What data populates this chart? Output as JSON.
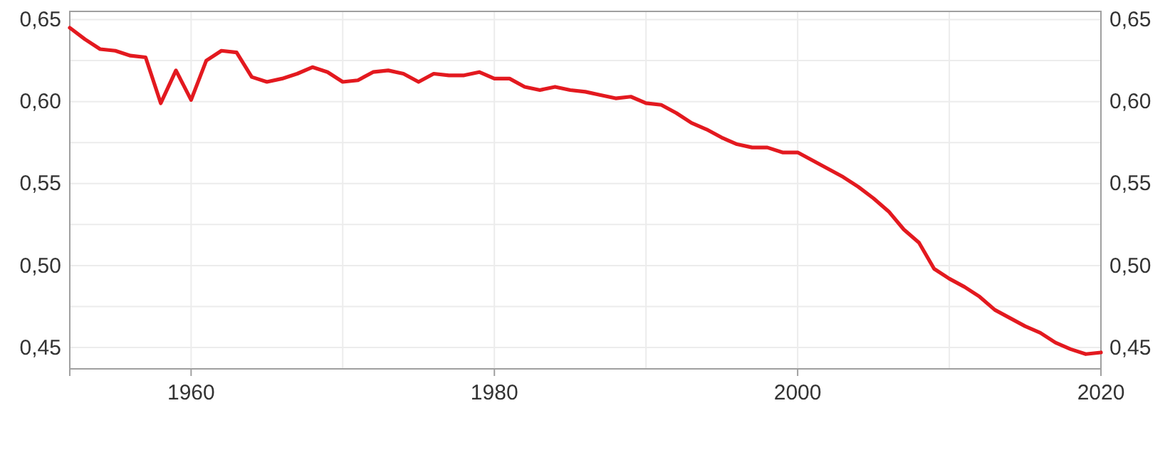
{
  "chart_data": {
    "type": "line",
    "x": [
      1952,
      1953,
      1954,
      1955,
      1956,
      1957,
      1958,
      1959,
      1960,
      1961,
      1962,
      1963,
      1964,
      1965,
      1966,
      1967,
      1968,
      1969,
      1970,
      1971,
      1972,
      1973,
      1974,
      1975,
      1976,
      1977,
      1978,
      1979,
      1980,
      1981,
      1982,
      1983,
      1984,
      1985,
      1986,
      1987,
      1988,
      1989,
      1990,
      1991,
      1992,
      1993,
      1994,
      1995,
      1996,
      1997,
      1998,
      1999,
      2000,
      2001,
      2002,
      2003,
      2004,
      2005,
      2006,
      2007,
      2008,
      2009,
      2010,
      2011,
      2012,
      2013,
      2014,
      2015,
      2016,
      2017,
      2018,
      2019,
      2020
    ],
    "series": [
      {
        "color": "#e3191f",
        "values": [
          0.645,
          0.638,
          0.632,
          0.631,
          0.628,
          0.627,
          0.599,
          0.619,
          0.601,
          0.625,
          0.631,
          0.63,
          0.615,
          0.612,
          0.614,
          0.617,
          0.621,
          0.618,
          0.612,
          0.613,
          0.618,
          0.619,
          0.617,
          0.612,
          0.617,
          0.616,
          0.616,
          0.618,
          0.614,
          0.614,
          0.609,
          0.607,
          0.609,
          0.607,
          0.606,
          0.604,
          0.602,
          0.603,
          0.599,
          0.598,
          0.593,
          0.587,
          0.583,
          0.578,
          0.574,
          0.572,
          0.572,
          0.569,
          0.569,
          0.564,
          0.559,
          0.554,
          0.548,
          0.541,
          0.533,
          0.522,
          0.514,
          0.498,
          0.492,
          0.487,
          0.481,
          0.473,
          0.468,
          0.463,
          0.459,
          0.453,
          0.449,
          0.446,
          0.447
        ]
      }
    ],
    "xlim": [
      1952,
      2020
    ],
    "xticks": [
      1960,
      1980,
      2000,
      2020
    ],
    "ylim": [
      0.437,
      0.655
    ],
    "yticks": [
      {
        "value": 0.45,
        "label": "0,45"
      },
      {
        "value": 0.5,
        "label": "0,50"
      },
      {
        "value": 0.55,
        "label": "0,55"
      },
      {
        "value": 0.6,
        "label": "0,60"
      },
      {
        "value": 0.65,
        "label": "0,65"
      }
    ],
    "y2lim": [
      0.437,
      0.655
    ],
    "y2ticks": [
      {
        "value": 0.45,
        "label": "0,45"
      },
      {
        "value": 0.5,
        "label": "0,50"
      },
      {
        "value": 0.55,
        "label": "0,55"
      },
      {
        "value": 0.6,
        "label": "0,60"
      },
      {
        "value": 0.65,
        "label": "0,65"
      }
    ],
    "grid": true,
    "marker": "none",
    "line_style": "solid"
  }
}
